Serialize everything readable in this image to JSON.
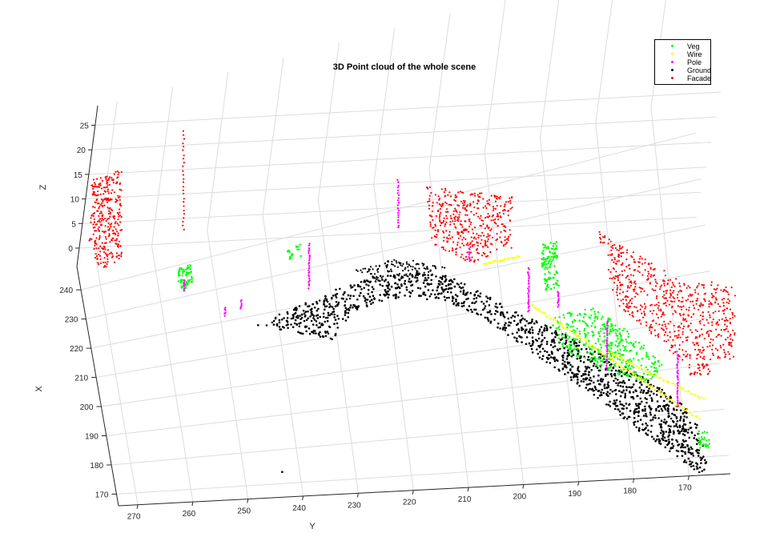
{
  "chart_data": {
    "type": "scatter",
    "title": "3D Point cloud of the whole scene",
    "xlabel": "X",
    "ylabel": "Y",
    "zlabel": "Z",
    "y_ticks": [
      "270",
      "260",
      "250",
      "240",
      "230",
      "220",
      "210",
      "200",
      "190",
      "180",
      "170"
    ],
    "x_ticks": [
      "170",
      "180",
      "190",
      "200",
      "210",
      "220",
      "230",
      "240"
    ],
    "z_ticks": [
      "0",
      "5",
      "10",
      "15",
      "20",
      "25"
    ],
    "legend_position": "top-right",
    "grid": true,
    "series": [
      {
        "name": "Veg",
        "color": "#00ff00"
      },
      {
        "name": "Wire",
        "color": "#ffff00"
      },
      {
        "name": "Pole",
        "color": "#ff00ff"
      },
      {
        "name": "Ground",
        "color": "#000000"
      },
      {
        "name": "Facade",
        "color": "#ff0000"
      }
    ]
  }
}
